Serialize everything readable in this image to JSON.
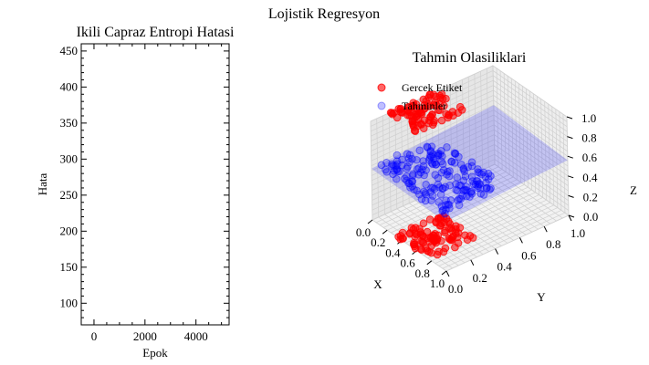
{
  "figure": {
    "suptitle": "Lojistik Regresyon"
  },
  "chart_data": [
    {
      "type": "line",
      "title": "Ikili Capraz Entropi Hatasi",
      "xlabel": "Epok",
      "ylabel": "Hata",
      "xlim": [
        -500,
        5300
      ],
      "ylim": [
        70,
        460
      ],
      "xticks": [
        0,
        2000,
        4000
      ],
      "yticks": [
        100,
        150,
        200,
        250,
        300,
        350,
        400,
        450
      ],
      "series": [
        {
          "x": [],
          "y": []
        }
      ],
      "grid": false
    },
    {
      "type": "scatter",
      "title": "Tahmin Olasiliklari",
      "xlabel": "X",
      "ylabel": "Y",
      "zlabel": "Z",
      "xlim": [
        0,
        1
      ],
      "ylim": [
        0,
        1
      ],
      "zlim": [
        0,
        1
      ],
      "xticks": [
        "0.0",
        "0.2",
        "0.4",
        "0.6",
        "0.8",
        "1.0"
      ],
      "yticks": [
        "0.0",
        "0.2",
        "0.4",
        "0.6",
        "0.8",
        "1.0"
      ],
      "zticks": [
        "0.0",
        "0.2",
        "0.4",
        "0.6",
        "0.8",
        "1.0"
      ],
      "legend_position": "top-left",
      "grid": true,
      "series": [
        {
          "name": "Gercek Etiket",
          "color": "#ff0000",
          "note_values": "label 0 cluster near z=0 (x 0.3-0.75, y 0.0-0.35) and label 1 cluster near z=1 (x 0.0-0.35, y 0.2-0.55)"
        },
        {
          "name": "Tahminler",
          "color": "#0000ff",
          "prediction_surface_color": "#0000ff"
        }
      ],
      "clusters": {
        "true_0": {
          "x": [
            0.3,
            0.78
          ],
          "y": [
            0.0,
            0.38
          ],
          "z": 0.0,
          "n": 95
        },
        "true_1": {
          "x": [
            0.0,
            0.38
          ],
          "y": [
            0.15,
            0.55
          ],
          "z": 1.0,
          "n": 90
        },
        "pred": {
          "x": [
            0.0,
            0.9
          ],
          "y": [
            0.05,
            0.55
          ],
          "z": [
            0.45,
            0.62
          ],
          "n": 180
        }
      }
    }
  ]
}
